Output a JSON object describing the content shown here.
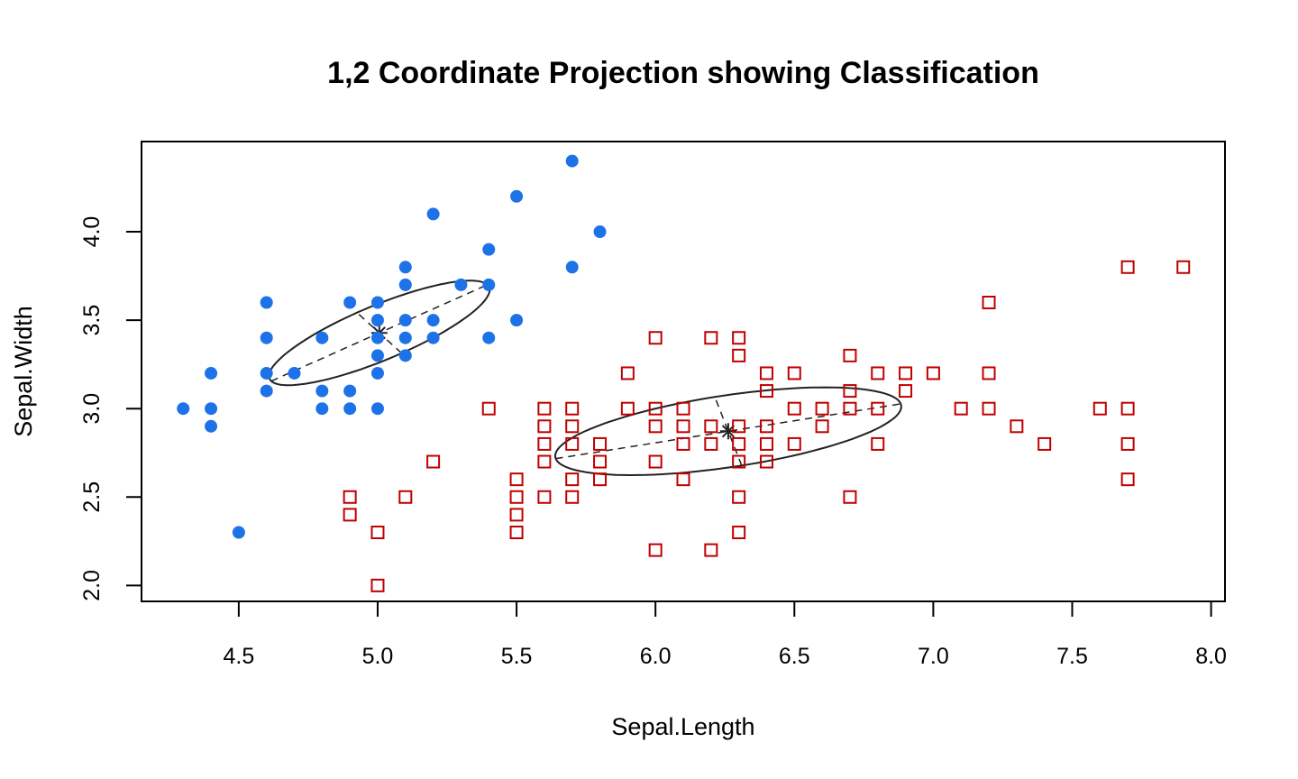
{
  "chart_data": {
    "type": "scatter",
    "title": "1,2 Coordinate Projection showing Classification",
    "xlabel": "Sepal.Length",
    "ylabel": "Sepal.Width",
    "xlim": [
      4.15,
      8.05
    ],
    "ylim": [
      1.91,
      4.51
    ],
    "x_ticks": [
      "4.5",
      "5.0",
      "5.5",
      "6.0",
      "6.5",
      "7.0",
      "7.5",
      "8.0"
    ],
    "y_ticks": [
      "2.0",
      "2.5",
      "3.0",
      "3.5",
      "4.0"
    ],
    "grid": false,
    "legend": "none",
    "series": [
      {
        "marker": "filled-circle",
        "color": "#1E72E8",
        "points": [
          [
            4.3,
            3.0
          ],
          [
            4.4,
            3.2
          ],
          [
            4.4,
            3.0
          ],
          [
            4.4,
            2.9
          ],
          [
            4.5,
            2.3
          ],
          [
            4.6,
            3.6
          ],
          [
            4.6,
            3.4
          ],
          [
            4.6,
            3.2
          ],
          [
            4.6,
            3.1
          ],
          [
            4.7,
            3.2
          ],
          [
            4.8,
            3.4
          ],
          [
            4.8,
            3.1
          ],
          [
            4.8,
            3.0
          ],
          [
            4.9,
            3.6
          ],
          [
            4.9,
            3.1
          ],
          [
            4.9,
            3.0
          ],
          [
            5.0,
            3.6
          ],
          [
            5.0,
            3.5
          ],
          [
            5.0,
            3.4
          ],
          [
            5.0,
            3.3
          ],
          [
            5.0,
            3.2
          ],
          [
            5.0,
            3.0
          ],
          [
            5.1,
            3.8
          ],
          [
            5.1,
            3.7
          ],
          [
            5.1,
            3.5
          ],
          [
            5.1,
            3.4
          ],
          [
            5.1,
            3.3
          ],
          [
            5.2,
            4.1
          ],
          [
            5.2,
            3.5
          ],
          [
            5.2,
            3.4
          ],
          [
            5.3,
            3.7
          ],
          [
            5.4,
            3.9
          ],
          [
            5.4,
            3.7
          ],
          [
            5.4,
            3.4
          ],
          [
            5.5,
            4.2
          ],
          [
            5.5,
            3.5
          ],
          [
            5.7,
            4.4
          ],
          [
            5.7,
            3.8
          ],
          [
            5.8,
            4.0
          ]
        ]
      },
      {
        "marker": "open-square",
        "color": "#C00000",
        "points": [
          [
            4.9,
            2.5
          ],
          [
            4.9,
            2.4
          ],
          [
            5.0,
            2.3
          ],
          [
            5.0,
            2.0
          ],
          [
            5.1,
            2.5
          ],
          [
            5.2,
            2.7
          ],
          [
            5.4,
            3.0
          ],
          [
            5.5,
            2.6
          ],
          [
            5.5,
            2.5
          ],
          [
            5.5,
            2.4
          ],
          [
            5.5,
            2.3
          ],
          [
            5.6,
            3.0
          ],
          [
            5.6,
            2.9
          ],
          [
            5.6,
            2.8
          ],
          [
            5.6,
            2.7
          ],
          [
            5.6,
            2.5
          ],
          [
            5.7,
            3.0
          ],
          [
            5.7,
            2.9
          ],
          [
            5.7,
            2.8
          ],
          [
            5.7,
            2.6
          ],
          [
            5.7,
            2.5
          ],
          [
            5.8,
            2.8
          ],
          [
            5.8,
            2.7
          ],
          [
            5.8,
            2.6
          ],
          [
            5.9,
            3.2
          ],
          [
            5.9,
            3.0
          ],
          [
            6.0,
            3.4
          ],
          [
            6.0,
            3.0
          ],
          [
            6.0,
            2.9
          ],
          [
            6.0,
            2.7
          ],
          [
            6.0,
            2.2
          ],
          [
            6.1,
            3.0
          ],
          [
            6.1,
            2.9
          ],
          [
            6.1,
            2.8
          ],
          [
            6.1,
            2.6
          ],
          [
            6.2,
            3.4
          ],
          [
            6.2,
            2.9
          ],
          [
            6.2,
            2.8
          ],
          [
            6.2,
            2.2
          ],
          [
            6.3,
            3.4
          ],
          [
            6.3,
            3.3
          ],
          [
            6.3,
            2.9
          ],
          [
            6.3,
            2.8
          ],
          [
            6.3,
            2.7
          ],
          [
            6.3,
            2.5
          ],
          [
            6.3,
            2.3
          ],
          [
            6.4,
            3.2
          ],
          [
            6.4,
            3.1
          ],
          [
            6.4,
            2.9
          ],
          [
            6.4,
            2.8
          ],
          [
            6.4,
            2.7
          ],
          [
            6.5,
            3.2
          ],
          [
            6.5,
            3.0
          ],
          [
            6.5,
            2.8
          ],
          [
            6.6,
            3.0
          ],
          [
            6.6,
            2.9
          ],
          [
            6.7,
            3.3
          ],
          [
            6.7,
            3.1
          ],
          [
            6.7,
            3.0
          ],
          [
            6.7,
            2.5
          ],
          [
            6.8,
            3.2
          ],
          [
            6.8,
            3.0
          ],
          [
            6.8,
            2.8
          ],
          [
            6.9,
            3.2
          ],
          [
            6.9,
            3.1
          ],
          [
            7.0,
            3.2
          ],
          [
            7.1,
            3.0
          ],
          [
            7.2,
            3.6
          ],
          [
            7.2,
            3.2
          ],
          [
            7.2,
            3.0
          ],
          [
            7.3,
            2.9
          ],
          [
            7.4,
            2.8
          ],
          [
            7.6,
            3.0
          ],
          [
            7.7,
            3.8
          ],
          [
            7.7,
            3.0
          ],
          [
            7.7,
            2.8
          ],
          [
            7.7,
            2.6
          ],
          [
            7.9,
            3.8
          ]
        ]
      }
    ],
    "clusters": [
      {
        "mean": [
          5.006,
          3.428
        ],
        "semi_axes": [
          0.475,
          0.14
        ],
        "angle_deg": 35
      },
      {
        "mean": [
          6.262,
          2.872
        ],
        "semi_axes": [
          0.64,
          0.2
        ],
        "angle_deg": 14
      }
    ]
  }
}
